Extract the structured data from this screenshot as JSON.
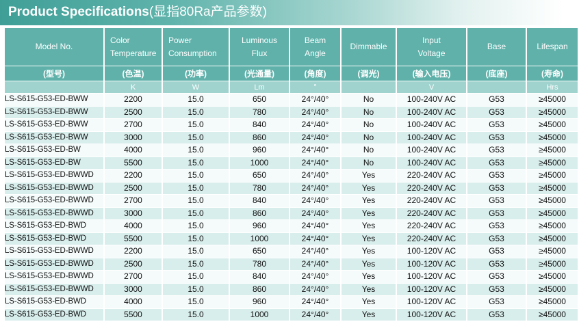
{
  "title": {
    "english": "Product Specifications",
    "chinese": "(显指80Ra产品参数)"
  },
  "headers": [
    {
      "en": [
        "Model No."
      ],
      "cn": "(型号)",
      "unit": ""
    },
    {
      "en": [
        "Color",
        "Temperature"
      ],
      "cn": "(色温)",
      "unit": "K"
    },
    {
      "en": [
        "Power",
        "Consumption"
      ],
      "cn": "(功率)",
      "unit": "W"
    },
    {
      "en": [
        "Luminous",
        "Flux"
      ],
      "cn": "(光通量)",
      "unit": "Lm"
    },
    {
      "en": [
        "Beam",
        "Angle"
      ],
      "cn": "(角度)",
      "unit": "°"
    },
    {
      "en": [
        "Dimmable"
      ],
      "cn": "(调光)",
      "unit": ""
    },
    {
      "en": [
        "Input",
        "Voltage"
      ],
      "cn": "(输入电压)",
      "unit": "V"
    },
    {
      "en": [
        "Base"
      ],
      "cn": "(底座)",
      "unit": ""
    },
    {
      "en": [
        "Lifespan"
      ],
      "cn": "(寿命)",
      "unit": "Hrs"
    }
  ],
  "rows": [
    [
      "LS-S615-G53-ED-BWW",
      "2200",
      "15.0",
      "650",
      "24°/40°",
      "No",
      "100-240V AC",
      "G53",
      "≥45000"
    ],
    [
      "LS-S615-G53-ED-BWW",
      "2500",
      "15.0",
      "780",
      "24°/40°",
      "No",
      "100-240V AC",
      "G53",
      "≥45000"
    ],
    [
      "LS-S615-G53-ED-BWW",
      "2700",
      "15.0",
      "840",
      "24°/40°",
      "No",
      "100-240V AC",
      "G53",
      "≥45000"
    ],
    [
      "LS-S615-G53-ED-BWW",
      "3000",
      "15.0",
      "860",
      "24°/40°",
      "No",
      "100-240V AC",
      "G53",
      "≥45000"
    ],
    [
      "LS-S615-G53-ED-BW",
      "4000",
      "15.0",
      "960",
      "24°/40°",
      "No",
      "100-240V AC",
      "G53",
      "≥45000"
    ],
    [
      "LS-S615-G53-ED-BW",
      "5500",
      "15.0",
      "1000",
      "24°/40°",
      "No",
      "100-240V AC",
      "G53",
      "≥45000"
    ],
    [
      "LS-S615-G53-ED-BWWD",
      "2200",
      "15.0",
      "650",
      "24°/40°",
      "Yes",
      "220-240V AC",
      "G53",
      "≥45000"
    ],
    [
      "LS-S615-G53-ED-BWWD",
      "2500",
      "15.0",
      "780",
      "24°/40°",
      "Yes",
      "220-240V AC",
      "G53",
      "≥45000"
    ],
    [
      "LS-S615-G53-ED-BWWD",
      "2700",
      "15.0",
      "840",
      "24°/40°",
      "Yes",
      "220-240V AC",
      "G53",
      "≥45000"
    ],
    [
      "LS-S615-G53-ED-BWWD",
      "3000",
      "15.0",
      "860",
      "24°/40°",
      "Yes",
      "220-240V AC",
      "G53",
      "≥45000"
    ],
    [
      "LS-S615-G53-ED-BWD",
      "4000",
      "15.0",
      "960",
      "24°/40°",
      "Yes",
      "220-240V AC",
      "G53",
      "≥45000"
    ],
    [
      "LS-S615-G53-ED-BWD",
      "5500",
      "15.0",
      "1000",
      "24°/40°",
      "Yes",
      "220-240V AC",
      "G53",
      "≥45000"
    ],
    [
      "LS-S615-G53-ED-BWWD",
      "2200",
      "15.0",
      "650",
      "24°/40°",
      "Yes",
      "100-120V AC",
      "G53",
      "≥45000"
    ],
    [
      "LS-S615-G53-ED-BWWD",
      "2500",
      "15.0",
      "780",
      "24°/40°",
      "Yes",
      "100-120V AC",
      "G53",
      "≥45000"
    ],
    [
      "LS-S615-G53-ED-BWWD",
      "2700",
      "15.0",
      "840",
      "24°/40°",
      "Yes",
      "100-120V AC",
      "G53",
      "≥45000"
    ],
    [
      "LS-S615-G53-ED-BWWD",
      "3000",
      "15.0",
      "860",
      "24°/40°",
      "Yes",
      "100-120V AC",
      "G53",
      "≥45000"
    ],
    [
      "LS-S615-G53-ED-BWD",
      "4000",
      "15.0",
      "960",
      "24°/40°",
      "Yes",
      "100-120V AC",
      "G53",
      "≥45000"
    ],
    [
      "LS-S615-G53-ED-BWD",
      "5500",
      "15.0",
      "1000",
      "24°/40°",
      "Yes",
      "100-120V AC",
      "G53",
      "≥45000"
    ]
  ],
  "colors": {
    "header_bg": "#5fb1aa",
    "unit_row_bg": "#a0d3ce",
    "row_odd_bg": "#d8eeec",
    "row_even_bg": "#f4fbfa",
    "title_start": "#3f9f97"
  }
}
